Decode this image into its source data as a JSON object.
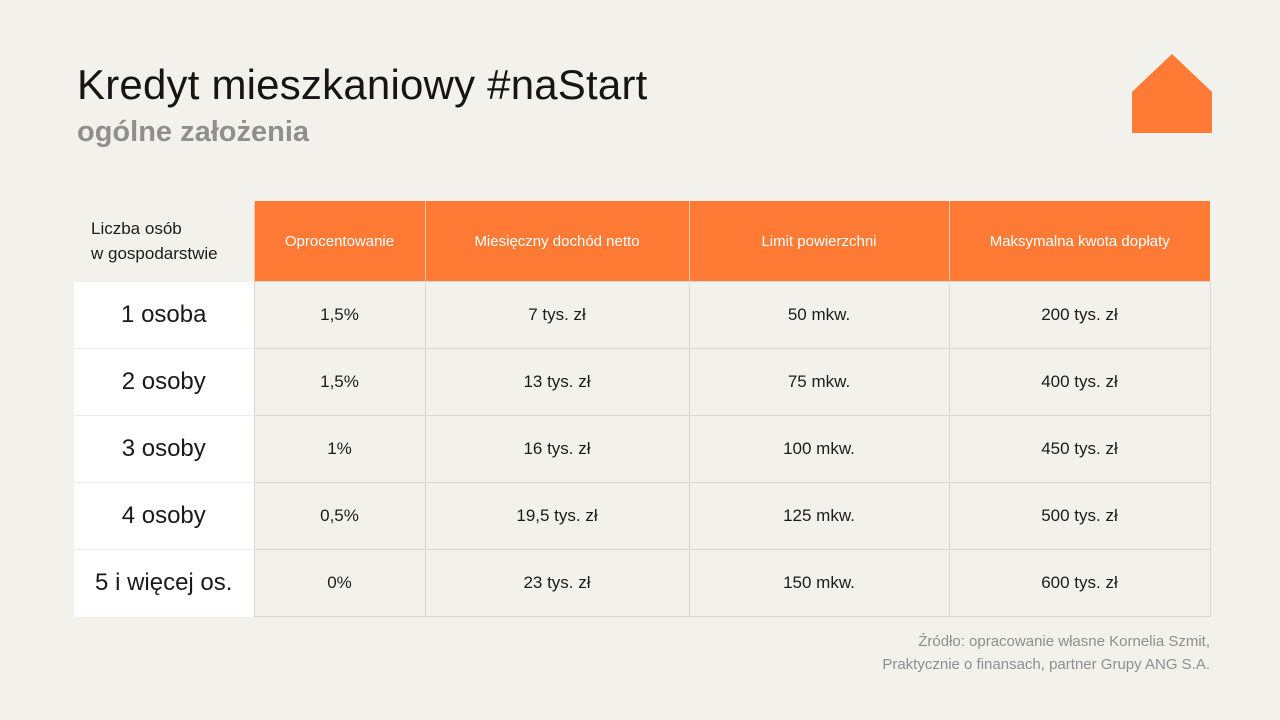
{
  "header": {
    "title": "Kredyt mieszkaniowy #naStart",
    "subtitle": "ogólne założenia"
  },
  "logo": {
    "icon": "house-icon",
    "color": "#ff7a35"
  },
  "table": {
    "corner_label_line1": "Liczba osób",
    "corner_label_line2": "w gospodarstwie",
    "columns": [
      "Oprocentowanie",
      "Miesięczny dochód netto",
      "Limit powierzchni",
      "Maksymalna kwota dopłaty"
    ],
    "rows": [
      {
        "label": "1 osoba",
        "cells": [
          "1,5%",
          "7 tys. zł",
          "50 mkw.",
          "200 tys. zł"
        ]
      },
      {
        "label": "2 osoby",
        "cells": [
          "1,5%",
          "13 tys. zł",
          "75 mkw.",
          "400 tys. zł"
        ]
      },
      {
        "label": "3 osoby",
        "cells": [
          "1%",
          "16 tys. zł",
          "100 mkw.",
          "450 tys. zł"
        ]
      },
      {
        "label": "4 osoby",
        "cells": [
          "0,5%",
          "19,5 tys. zł",
          "125 mkw.",
          "500 tys. zł"
        ]
      },
      {
        "label": "5 i więcej os.",
        "cells": [
          "0%",
          "23 tys. zł",
          "150 mkw.",
          "600 tys. zł"
        ]
      }
    ]
  },
  "source": {
    "line1": "Źródło: opracowanie własne Kornelia Szmit,",
    "line2": "Praktycznie o finansach, partner Grupy ANG S.A."
  },
  "colors": {
    "accent": "#ff7a35",
    "background": "#f3f1ec",
    "muted_text": "#8f8f8f"
  }
}
